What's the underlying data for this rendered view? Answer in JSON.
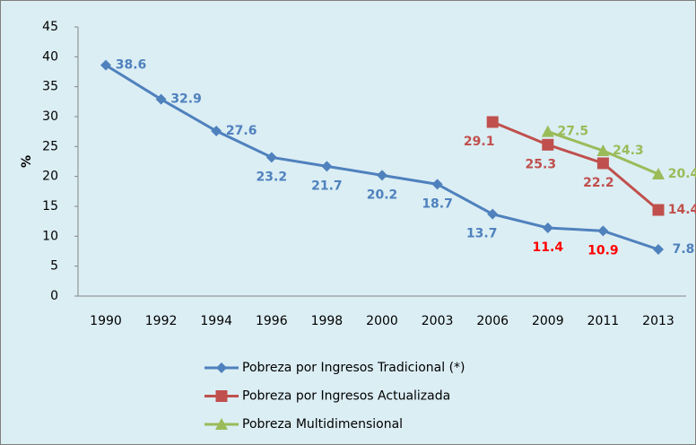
{
  "chart_data": {
    "type": "line",
    "y_label": "%",
    "categories": [
      "1990",
      "1992",
      "1994",
      "1996",
      "1998",
      "2000",
      "2003",
      "2006",
      "2009",
      "2011",
      "2013"
    ],
    "ylim": [
      0,
      45
    ],
    "yticks": [
      0,
      5,
      10,
      15,
      20,
      25,
      30,
      35,
      40,
      45
    ],
    "series": [
      {
        "name": "Pobreza por Ingresos Tradicional (*)",
        "color": "#4f81bd",
        "marker": "diamond",
        "values": [
          38.6,
          32.9,
          27.6,
          23.2,
          21.7,
          20.2,
          18.7,
          13.7,
          11.4,
          10.9,
          7.8
        ],
        "label_colors": [
          "#4f81bd",
          "#4f81bd",
          "#4f81bd",
          "#4f81bd",
          "#4f81bd",
          "#4f81bd",
          "#4f81bd",
          "#4f81bd",
          "#ff0000",
          "#ff0000",
          "#4f81bd"
        ]
      },
      {
        "name": "Pobreza por Ingresos Actualizada",
        "color": "#c0504d",
        "marker": "square",
        "values": [
          null,
          null,
          null,
          null,
          null,
          null,
          null,
          29.1,
          25.3,
          22.2,
          14.4
        ]
      },
      {
        "name": "Pobreza Multidimensional",
        "color": "#9bbb59",
        "marker": "triangle",
        "values": [
          null,
          null,
          null,
          null,
          null,
          null,
          null,
          null,
          27.5,
          24.3,
          20.4
        ]
      }
    ]
  }
}
